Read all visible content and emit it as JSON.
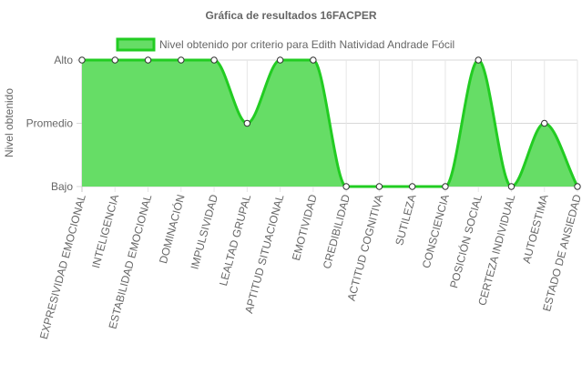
{
  "chart_data": {
    "type": "area",
    "title": "Gráfica de resultados 16FACPER",
    "ylabel": "Nivel obtenido",
    "xlabel": "",
    "y_levels": [
      "Bajo",
      "Promedio",
      "Alto"
    ],
    "categories": [
      "EXPRESIVIDAD EMOCIONAL",
      "INTELIGENCIA",
      "ESTABILIDAD EMOCIONAL",
      "DOMINACIÓN",
      "IMPULSIVIDAD",
      "LEALTAD GRUPAL",
      "APTITUD SITUACIONAL",
      "EMOTIVIDAD",
      "CREDIBILIDAD",
      "ACTITUD COGNITIVA",
      "SUTILEZA",
      "CONSCIENCIA",
      "POSICIÓN SOCIAL",
      "CERTEZA INDIVIDUAL",
      "AUTOESTIMA",
      "ESTADO DE ANSIEDAD"
    ],
    "series": [
      {
        "name": "Nivel obtenido por criterio para Edith Natividad Andrade Fócil",
        "values": [
          2,
          2,
          2,
          2,
          2,
          1,
          2,
          2,
          0,
          0,
          0,
          0,
          2,
          0,
          1,
          0
        ],
        "color": "#22cc22",
        "fill": "#66dd66"
      }
    ],
    "ylim": [
      0,
      2
    ],
    "grid": true,
    "legend": "top"
  }
}
